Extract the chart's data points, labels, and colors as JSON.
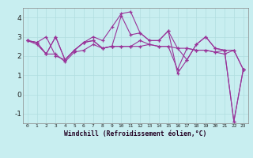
{
  "background_color": "#c8eef0",
  "grid_color": "#b0dde0",
  "line_color": "#993399",
  "marker": "+",
  "xlabel": "Windchill (Refroidissement éolien,°C)",
  "xlim_min": -0.5,
  "xlim_max": 23.5,
  "ylim_min": -1.5,
  "ylim_max": 4.5,
  "yticks": [
    -1,
    0,
    1,
    2,
    3,
    4
  ],
  "series": [
    [
      2.8,
      2.7,
      2.1,
      2.1,
      1.7,
      2.2,
      2.3,
      2.6,
      2.4,
      2.5,
      2.5,
      2.5,
      2.5,
      2.6,
      2.5,
      2.5,
      2.4,
      2.4,
      2.3,
      2.3,
      2.2,
      2.1,
      2.3,
      1.3
    ],
    [
      2.8,
      2.7,
      3.0,
      2.0,
      1.8,
      2.3,
      2.7,
      3.0,
      2.8,
      3.5,
      4.2,
      4.3,
      3.2,
      2.8,
      2.8,
      3.3,
      1.1,
      1.8,
      2.6,
      3.0,
      2.4,
      2.3,
      -1.4,
      1.3
    ],
    [
      2.8,
      2.6,
      2.1,
      3.0,
      1.8,
      2.3,
      2.7,
      2.8,
      2.4,
      2.5,
      2.5,
      2.5,
      2.8,
      2.6,
      2.5,
      2.5,
      1.3,
      2.4,
      2.3,
      2.3,
      2.2,
      2.3,
      2.3,
      1.3
    ],
    [
      2.8,
      2.7,
      2.1,
      3.0,
      1.8,
      2.3,
      2.7,
      2.8,
      2.4,
      2.5,
      4.1,
      3.1,
      3.2,
      2.8,
      2.8,
      3.3,
      2.4,
      1.8,
      2.6,
      3.0,
      2.4,
      2.3,
      -1.4,
      1.3
    ]
  ]
}
